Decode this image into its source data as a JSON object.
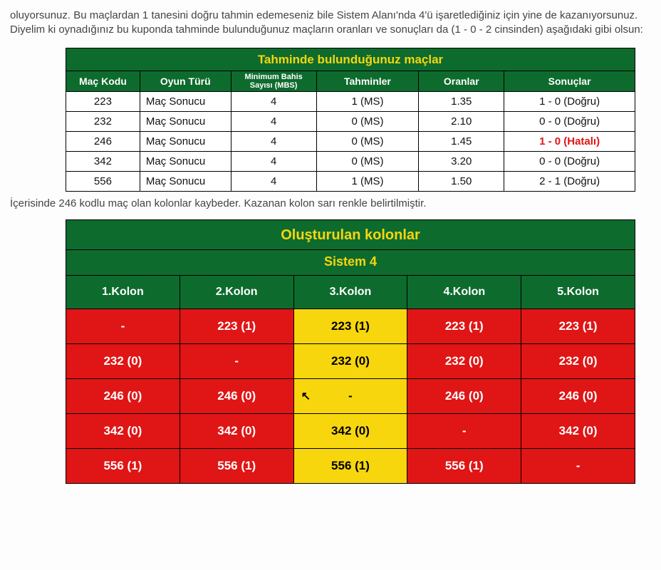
{
  "intro_text": "oluyorsunuz. Bu maçlardan 1 tanesini doğru tahmin edemeseniz bile Sistem Alanı'nda 4'ü işaretlediğiniz için yine de kazanıyorsunuz. Diyelim ki oynadığınız bu kuponda tahminde bulunduğunuz maçların oranları ve sonuçları da (1 - 0 - 2 cinsinden) aşağıdaki gibi olsun:",
  "middle_text": "İçerisinde 246 kodlu maç olan kolonlar kaybeder. Kazanan kolon sarı renkle belirtilmiştir.",
  "colors": {
    "header_bg": "#0e6b2e",
    "header_title": "#f7d60e",
    "header_text": "#ffffff",
    "lose_bg": "#e01515",
    "win_bg": "#f7d60e",
    "error_text": "#e01515",
    "border": "#000000",
    "body_text": "#111111"
  },
  "table1": {
    "title": "Tahminde bulunduğunuz maçlar",
    "col_widths_pct": [
      13,
      16,
      15,
      18,
      15,
      23
    ],
    "headers": {
      "col1": "Maç Kodu",
      "col2": "Oyun Türü",
      "col3_l1": "Minimum Bahis",
      "col3_l2": "Sayısı (MBS)",
      "col4": "Tahminler",
      "col5": "Oranlar",
      "col6": "Sonuçlar"
    },
    "rows": [
      {
        "kod": "223",
        "tur": "Maç Sonucu",
        "mbs": "4",
        "tahmin": "1 (MS)",
        "oran": "1.35",
        "sonuc": "1 - 0 (Doğru)",
        "err": false
      },
      {
        "kod": "232",
        "tur": "Maç Sonucu",
        "mbs": "4",
        "tahmin": "0 (MS)",
        "oran": "2.10",
        "sonuc": "0 - 0 (Doğru)",
        "err": false
      },
      {
        "kod": "246",
        "tur": "Maç Sonucu",
        "mbs": "4",
        "tahmin": "0 (MS)",
        "oran": "1.45",
        "sonuc": "1 - 0 (Hatalı)",
        "err": true
      },
      {
        "kod": "342",
        "tur": "Maç Sonucu",
        "mbs": "4",
        "tahmin": "0 (MS)",
        "oran": "3.20",
        "sonuc": "0 - 0 (Doğru)",
        "err": false
      },
      {
        "kod": "556",
        "tur": "Maç Sonucu",
        "mbs": "4",
        "tahmin": "1 (MS)",
        "oran": "1.50",
        "sonuc": "2 - 1 (Doğru)",
        "err": false
      }
    ]
  },
  "table2": {
    "title": "Oluşturulan kolonlar",
    "subtitle": "Sistem 4",
    "col_headers": [
      "1.Kolon",
      "2.Kolon",
      "3.Kolon",
      "4.Kolon",
      "5.Kolon"
    ],
    "winning_col_index": 2,
    "cursor_cell": {
      "row": 2,
      "col": 2
    },
    "grid": [
      [
        "-",
        "223 (1)",
        "223 (1)",
        "223 (1)",
        "223 (1)"
      ],
      [
        "232 (0)",
        "-",
        "232 (0)",
        "232 (0)",
        "232 (0)"
      ],
      [
        "246 (0)",
        "246 (0)",
        "-",
        "246 (0)",
        "246 (0)"
      ],
      [
        "342 (0)",
        "342 (0)",
        "342 (0)",
        "-",
        "342 (0)"
      ],
      [
        "556 (1)",
        "556 (1)",
        "556 (1)",
        "556 (1)",
        "-"
      ]
    ]
  }
}
